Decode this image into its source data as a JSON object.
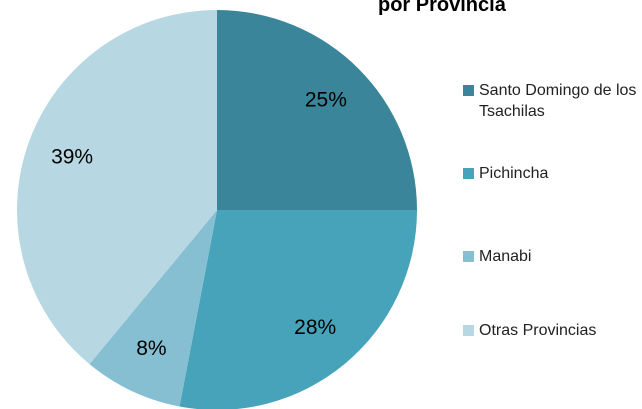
{
  "chart_data": {
    "type": "pie",
    "title": "por Provincia",
    "categories": [
      "Santo Domingo de los Tsachilas",
      "Pichincha",
      "Manabi",
      "Otras Provincias"
    ],
    "values": [
      25,
      28,
      8,
      39
    ],
    "value_labels": [
      "25%",
      "28%",
      "8%",
      "39%"
    ],
    "colors": [
      "#3a8599",
      "#47a3ba",
      "#85bfd1",
      "#b7d7e2"
    ],
    "legend": "right"
  }
}
